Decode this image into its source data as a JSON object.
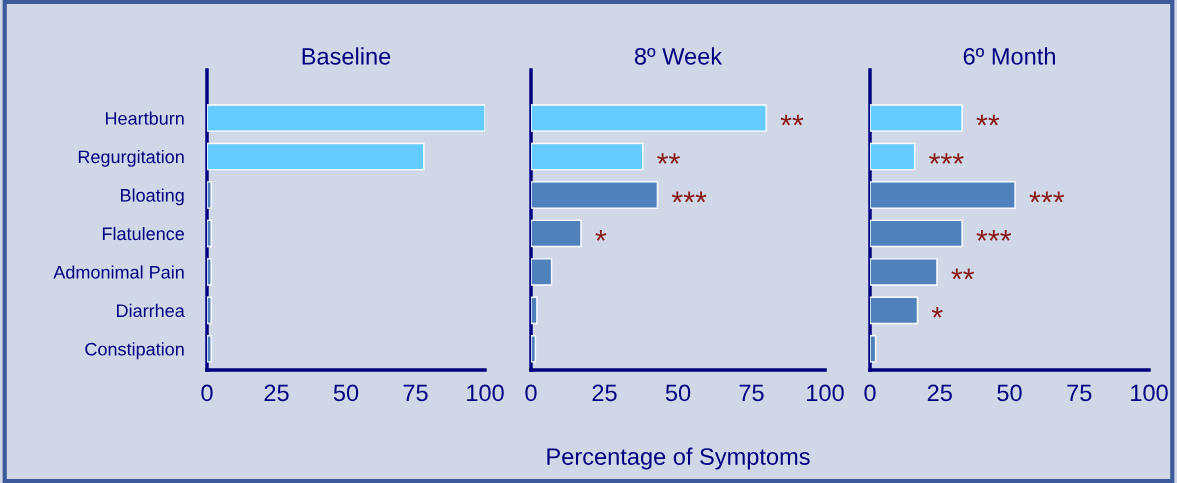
{
  "chart_data": [
    {
      "type": "bar",
      "orientation": "horizontal",
      "title": "Baseline",
      "categories": [
        "Heartburn",
        "Regurgitation",
        "Bloating",
        "Flatulence",
        "Admonimal Pain",
        "Diarrhea",
        "Constipation"
      ],
      "values": [
        100,
        78,
        1.5,
        1.5,
        1.5,
        1.5,
        1.5
      ],
      "colors": [
        "#66ccff",
        "#66ccff",
        "#4f81bd",
        "#4f81bd",
        "#4f81bd",
        "#4f81bd",
        "#4f81bd"
      ],
      "xlim": [
        0,
        100
      ],
      "xticks": [
        0,
        25,
        50,
        75,
        100
      ],
      "grid": false
    },
    {
      "type": "bar",
      "orientation": "horizontal",
      "title": "8º Week",
      "xlabel": "Percentage of Symptoms",
      "categories": [
        "Heartburn",
        "Regurgitation",
        "Bloating",
        "Flatulence",
        "Admonimal Pain",
        "Diarrhea",
        "Constipation"
      ],
      "values": [
        80,
        38,
        43,
        17,
        7,
        2,
        1.5
      ],
      "colors": [
        "#66ccff",
        "#66ccff",
        "#4f81bd",
        "#4f81bd",
        "#4f81bd",
        "#4f81bd",
        "#4f81bd"
      ],
      "xlim": [
        0,
        100
      ],
      "xticks": [
        0,
        25,
        50,
        75,
        100
      ],
      "grid": false,
      "tick_labels": "x",
      "annotations": [
        {
          "text": "**",
          "x": 80,
          "y": "Heartburn"
        },
        {
          "text": "**",
          "x": 38,
          "y": "Regurgitation"
        },
        {
          "text": "***",
          "x": 43,
          "y": "Bloating"
        },
        {
          "text": "*",
          "x": 17,
          "y": "Flatulence"
        }
      ]
    },
    {
      "type": "bar",
      "orientation": "horizontal",
      "title": "6º Month",
      "categories": [
        "Heartburn",
        "Regurgitation",
        "Bloating",
        "Flatulence",
        "Admonimal Pain",
        "Diarrhea",
        "Constipation"
      ],
      "values": [
        33,
        16,
        52,
        33,
        24,
        17,
        2
      ],
      "colors": [
        "#66ccff",
        "#66ccff",
        "#4f81bd",
        "#4f81bd",
        "#4f81bd",
        "#4f81bd",
        "#4f81bd"
      ],
      "xlim": [
        0,
        100
      ],
      "xticks": [
        0,
        25,
        50,
        75,
        100
      ],
      "grid": false,
      "tick_labels": "x",
      "annotations": [
        {
          "text": "**",
          "x": 33,
          "y": "Heartburn"
        },
        {
          "text": "***",
          "x": 16,
          "y": "Regurgitation"
        },
        {
          "text": "***",
          "x": 52,
          "y": "Bloating"
        },
        {
          "text": "***",
          "x": 33,
          "y": "Flatulence"
        },
        {
          "text": "**",
          "x": 24,
          "y": "Admonimal Pain"
        },
        {
          "text": "*",
          "x": 17,
          "y": "Diarrhea"
        }
      ]
    }
  ]
}
